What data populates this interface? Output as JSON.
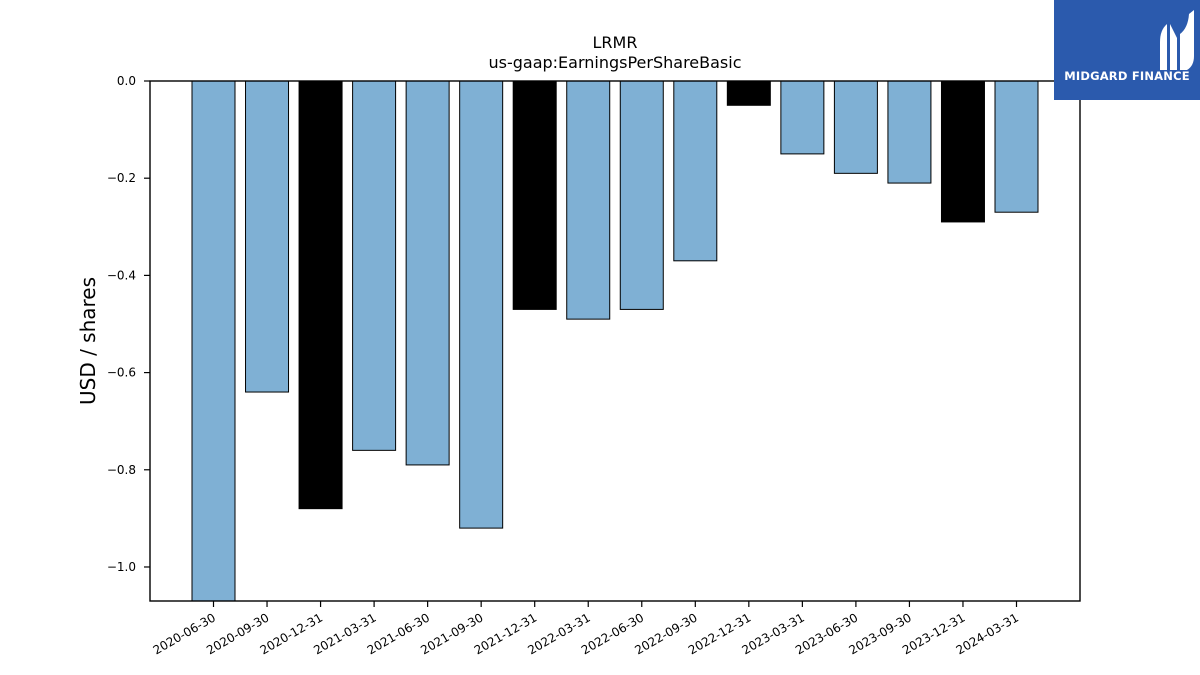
{
  "chart_data": {
    "type": "bar",
    "title": "LRMR",
    "subtitle": "us-gaap:EarningsPerShareBasic",
    "xlabel": "",
    "ylabel": "USD / shares",
    "categories": [
      "2020-06-30",
      "2020-09-30",
      "2020-12-31",
      "2021-03-31",
      "2021-06-30",
      "2021-09-30",
      "2021-12-31",
      "2022-03-31",
      "2022-06-30",
      "2022-09-30",
      "2022-12-31",
      "2023-03-31",
      "2023-06-30",
      "2023-09-30",
      "2023-12-31",
      "2024-03-31"
    ],
    "values": [
      -1.07,
      -0.64,
      -0.88,
      -0.76,
      -0.79,
      -0.92,
      -0.47,
      -0.49,
      -0.47,
      -0.37,
      -0.05,
      -0.15,
      -0.19,
      -0.21,
      -0.29,
      -0.27
    ],
    "highlighted": [
      false,
      false,
      true,
      false,
      false,
      false,
      true,
      false,
      false,
      false,
      true,
      false,
      false,
      false,
      true,
      false
    ],
    "ylim": [
      -1.07,
      0.0
    ],
    "yticks": [
      0.0,
      -0.2,
      -0.4,
      -0.6,
      -0.8,
      -1.0
    ],
    "ytick_labels": [
      "0.0",
      "−0.2",
      "−0.4",
      "−0.6",
      "−0.8",
      "−1.0"
    ],
    "grid": false,
    "colors": {
      "bar": "#7fb0d4",
      "highlight": "#000000",
      "edge": "#000000"
    }
  },
  "logo": {
    "text": "MIDGARD FINANCE",
    "icon": "midgard-logo-icon",
    "background": "#2b5aad"
  }
}
